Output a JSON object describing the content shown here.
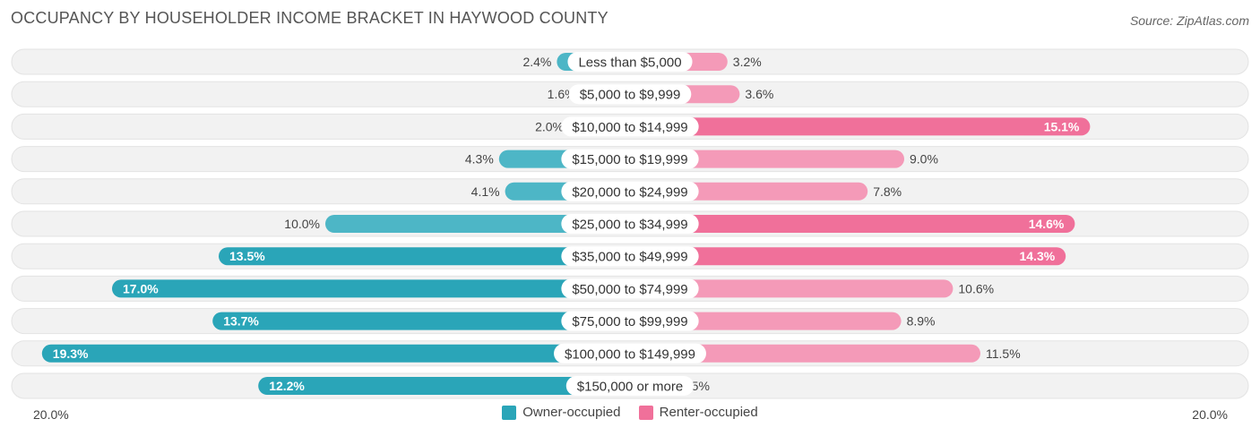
{
  "title": "OCCUPANCY BY HOUSEHOLDER INCOME BRACKET IN HAYWOOD COUNTY",
  "source": "Source: ZipAtlas.com",
  "legend": {
    "owner_label": "Owner-occupied",
    "renter_label": "Renter-occupied"
  },
  "axis": {
    "left_label": "20.0%",
    "right_label": "20.0%"
  },
  "colors": {
    "owner": "#4db6c6",
    "owner_strong": "#2aa5b8",
    "renter": "#f49ab8",
    "renter_strong": "#f0709a",
    "track": "#efefef"
  },
  "chart_data": {
    "type": "bar",
    "orientation": "horizontal-diverging",
    "xlim": [
      -20,
      20
    ],
    "unit": "%",
    "categories": [
      "Less than $5,000",
      "$5,000 to $9,999",
      "$10,000 to $14,999",
      "$15,000 to $19,999",
      "$20,000 to $24,999",
      "$25,000 to $34,999",
      "$35,000 to $49,999",
      "$50,000 to $74,999",
      "$75,000 to $99,999",
      "$100,000 to $149,999",
      "$150,000 or more"
    ],
    "series": [
      {
        "name": "Owner-occupied",
        "values": [
          2.4,
          1.6,
          2.0,
          4.3,
          4.1,
          10.0,
          13.5,
          17.0,
          13.7,
          19.3,
          12.2
        ]
      },
      {
        "name": "Renter-occupied",
        "values": [
          3.2,
          3.6,
          15.1,
          9.0,
          7.8,
          14.6,
          14.3,
          10.6,
          8.9,
          11.5,
          1.5
        ]
      }
    ]
  }
}
